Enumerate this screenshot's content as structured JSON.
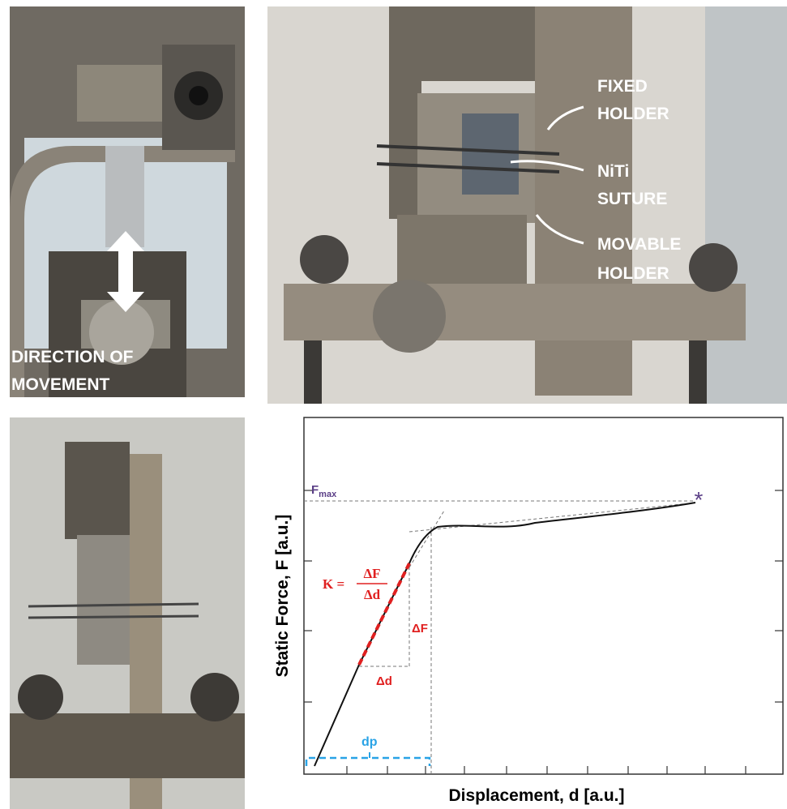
{
  "photos": {
    "top_left": {
      "label": [
        "DIRECTION OF",
        "MOVEMENT"
      ]
    },
    "top_right": {
      "labels": [
        {
          "lines": [
            "FIXED",
            "HOLDER"
          ]
        },
        {
          "lines": [
            "NiTi",
            "SUTURE"
          ]
        },
        {
          "lines": [
            "MOVABLE",
            "HOLDER"
          ]
        }
      ]
    }
  },
  "plot": {
    "y_label": "Static Force, F [a.u.]",
    "x_label": "Displacement, d [a.u.]",
    "fmax": {
      "symbol": "F",
      "subscript": "max"
    },
    "stiffness": {
      "lhs": "K =",
      "numerator": "ΔF",
      "denominator": "Δd"
    },
    "delta_f": "ΔF",
    "delta_d": "Δd",
    "dp": "dp"
  }
}
